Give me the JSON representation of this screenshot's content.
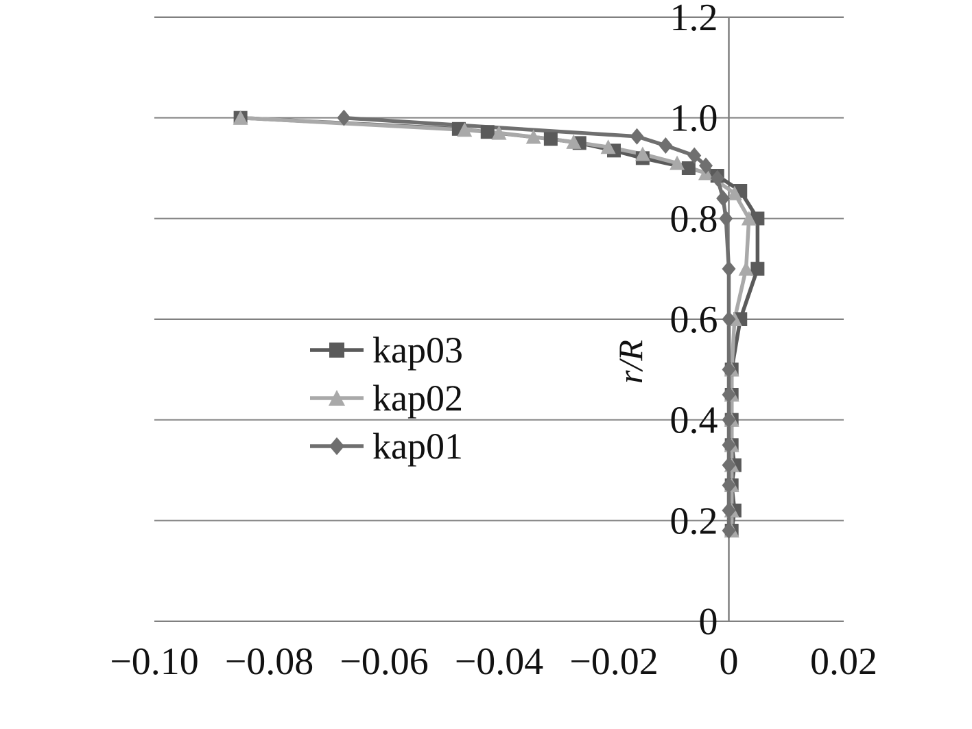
{
  "colors": {
    "background": "#ffffff",
    "grid": "#808080",
    "axis": "#808080",
    "text": "#111111"
  },
  "chart_data": {
    "type": "line",
    "title": "",
    "xlabel": "",
    "ylabel": "r/R",
    "xlim": [
      -0.1,
      0.02
    ],
    "ylim": [
      0,
      1.2
    ],
    "grid": "horizontal",
    "legend_position": "inside-center-left",
    "x_ticks": {
      "values": [
        -0.1,
        -0.08,
        -0.06,
        -0.04,
        -0.02,
        0,
        0.02
      ],
      "labels": [
        "−0.10",
        "−0.08",
        "−0.06",
        "−0.04",
        "−0.02",
        "0",
        "0.02"
      ]
    },
    "y_ticks": {
      "values": [
        0,
        0.2,
        0.4,
        0.6,
        0.8,
        1.0,
        1.2
      ],
      "labels": [
        "0",
        "0.2",
        "0.4",
        "0.6",
        "0.8",
        "1.0",
        "1.2"
      ]
    },
    "series": [
      {
        "name": "kap03",
        "marker": "square",
        "color": "#5a5a5a",
        "points": [
          [
            0.0005,
            0.18
          ],
          [
            0.001,
            0.22
          ],
          [
            0.0005,
            0.27
          ],
          [
            0.001,
            0.31
          ],
          [
            0.0005,
            0.35
          ],
          [
            0.0005,
            0.4
          ],
          [
            0.0005,
            0.45
          ],
          [
            0.0005,
            0.5
          ],
          [
            0.002,
            0.6
          ],
          [
            0.005,
            0.7
          ],
          [
            0.005,
            0.8
          ],
          [
            0.002,
            0.855
          ],
          [
            -0.002,
            0.885
          ],
          [
            -0.007,
            0.9
          ],
          [
            -0.015,
            0.92
          ],
          [
            -0.02,
            0.935
          ],
          [
            -0.026,
            0.95
          ],
          [
            -0.031,
            0.958
          ],
          [
            -0.042,
            0.972
          ],
          [
            -0.047,
            0.978
          ],
          [
            -0.085,
            1.0
          ]
        ]
      },
      {
        "name": "kap02",
        "marker": "triangle",
        "color": "#a9a9a9",
        "points": [
          [
            0.0005,
            0.18
          ],
          [
            0.0005,
            0.22
          ],
          [
            0.0005,
            0.27
          ],
          [
            0.0005,
            0.31
          ],
          [
            0.0005,
            0.35
          ],
          [
            0.0005,
            0.4
          ],
          [
            0.0005,
            0.45
          ],
          [
            0.0005,
            0.5
          ],
          [
            0.001,
            0.6
          ],
          [
            0.003,
            0.7
          ],
          [
            0.0035,
            0.8
          ],
          [
            0.001,
            0.85
          ],
          [
            -0.004,
            0.89
          ],
          [
            -0.009,
            0.91
          ],
          [
            -0.015,
            0.928
          ],
          [
            -0.021,
            0.942
          ],
          [
            -0.027,
            0.952
          ],
          [
            -0.034,
            0.962
          ],
          [
            -0.04,
            0.97
          ],
          [
            -0.046,
            0.976
          ],
          [
            -0.085,
            1.0
          ]
        ]
      },
      {
        "name": "kap01",
        "marker": "diamond",
        "color": "#6f6f6f",
        "points": [
          [
            0.0,
            0.18
          ],
          [
            0.0,
            0.22
          ],
          [
            0.0,
            0.27
          ],
          [
            0.0,
            0.31
          ],
          [
            0.0,
            0.35
          ],
          [
            0.0,
            0.4
          ],
          [
            0.0,
            0.45
          ],
          [
            0.0,
            0.5
          ],
          [
            0.0,
            0.6
          ],
          [
            0.0,
            0.7
          ],
          [
            -0.0005,
            0.8
          ],
          [
            -0.001,
            0.84
          ],
          [
            -0.002,
            0.88
          ],
          [
            -0.004,
            0.905
          ],
          [
            -0.006,
            0.925
          ],
          [
            -0.011,
            0.945
          ],
          [
            -0.016,
            0.963
          ],
          [
            -0.067,
            1.0
          ]
        ]
      }
    ]
  }
}
